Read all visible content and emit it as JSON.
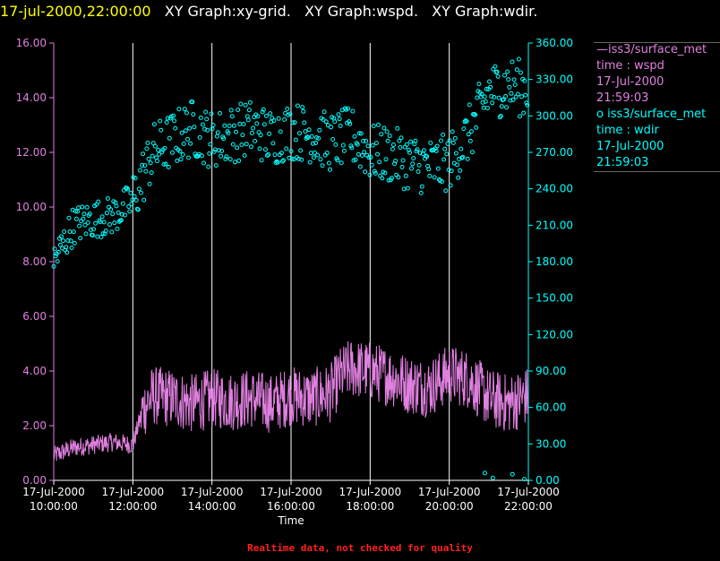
{
  "header": {
    "timestamp": "17-jul-2000,22:00:00",
    "graphs": [
      "XY Graph:xy-grid.",
      "XY Graph:wspd.",
      "XY Graph:wdir."
    ]
  },
  "legend": {
    "wspd": {
      "label": "—iss3/surface_met",
      "field": "time : wspd",
      "date": "17-Jul-2000",
      "time": "21:59:03"
    },
    "wdir": {
      "label": "o iss3/surface_met",
      "field": "time : wdir",
      "date": "17-Jul-2000",
      "time": "21:59:03"
    }
  },
  "footer": {
    "note": "Realtime data, not checked for quality"
  },
  "colors": {
    "wspd": "#e080e0",
    "wdir": "#00ffff",
    "grid": "#ffffff",
    "background": "#000000",
    "header_time": "#ffff00",
    "footer": "#ff2020"
  },
  "chart_data": {
    "type": "line",
    "xlabel": "Time",
    "x_ticks": [
      {
        "date": "17-Jul-2000",
        "time": "10:00:00"
      },
      {
        "date": "17-Jul-2000",
        "time": "12:00:00"
      },
      {
        "date": "17-Jul-2000",
        "time": "14:00:00"
      },
      {
        "date": "17-Jul-2000",
        "time": "16:00:00"
      },
      {
        "date": "17-Jul-2000",
        "time": "18:00:00"
      },
      {
        "date": "17-Jul-2000",
        "time": "20:00:00"
      },
      {
        "date": "17-Jul-2000",
        "time": "22:00:00"
      }
    ],
    "xlim": [
      "10:00",
      "22:00"
    ],
    "grid": "vertical",
    "legend_position": "right",
    "left_axis": {
      "ylim": [
        0,
        16
      ],
      "ticks": [
        "0.00",
        "2.00",
        "4.00",
        "6.00",
        "8.00",
        "10.00",
        "12.00",
        "14.00",
        "16.00"
      ]
    },
    "right_axis": {
      "ylim": [
        0,
        360
      ],
      "ticks": [
        "0.00",
        "30.00",
        "60.00",
        "90.00",
        "120.00",
        "150.00",
        "180.00",
        "210.00",
        "240.00",
        "270.00",
        "300.00",
        "330.00",
        "360.00"
      ]
    },
    "series": [
      {
        "name": "iss3/surface_met time : wspd",
        "axis": "left",
        "style": "line",
        "time_hours": [
          10,
          10.5,
          11,
          11.5,
          12,
          12.25,
          12.5,
          13,
          13.5,
          14,
          14.5,
          15,
          15.5,
          16,
          16.5,
          17,
          17.25,
          17.5,
          18,
          18.5,
          19,
          19.5,
          20,
          20.5,
          21,
          21.5,
          22
        ],
        "values": [
          0.9,
          1.2,
          1.3,
          1.4,
          1.3,
          2.6,
          3.1,
          3.0,
          2.8,
          3.0,
          2.9,
          3.0,
          2.8,
          3.1,
          3.0,
          3.2,
          3.8,
          4.1,
          4.0,
          3.8,
          3.5,
          3.4,
          3.9,
          3.7,
          3.0,
          2.8,
          3.1
        ]
      },
      {
        "name": "iss3/surface_met time : wdir",
        "axis": "right",
        "style": "scatter",
        "time_hours": [
          10,
          10.5,
          11,
          11.5,
          12,
          12.25,
          12.5,
          13,
          13.5,
          14,
          14.5,
          15,
          15.5,
          16,
          16.5,
          17,
          17.5,
          18,
          18.5,
          19,
          19.5,
          20,
          20.5,
          21,
          21.5,
          22
        ],
        "values": [
          180,
          210,
          215,
          218,
          230,
          250,
          270,
          280,
          290,
          280,
          285,
          290,
          282,
          288,
          285,
          278,
          284,
          270,
          268,
          262,
          258,
          262,
          285,
          320,
          325,
          322
        ]
      }
    ]
  }
}
